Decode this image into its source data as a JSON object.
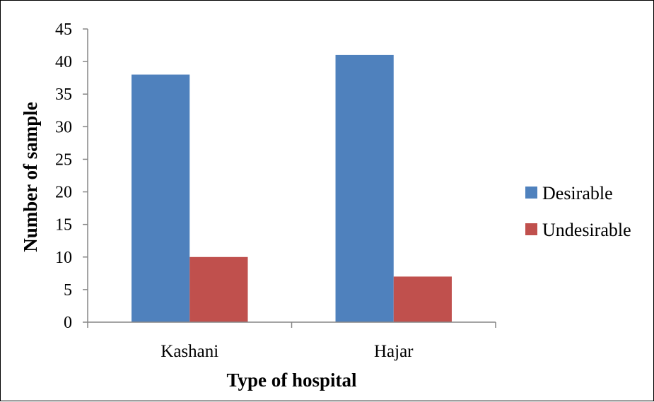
{
  "chart_data": {
    "type": "bar",
    "categories": [
      "Kashani",
      "Hajar"
    ],
    "series": [
      {
        "name": "Desirable",
        "values": [
          38,
          41
        ],
        "color": "#4F81BD"
      },
      {
        "name": "Undesirable",
        "values": [
          10,
          7
        ],
        "color": "#C0504D"
      }
    ],
    "xlabel": "Type of hospital",
    "ylabel": "Number of sample",
    "ylim": [
      0,
      45
    ],
    "yticks": [
      0,
      5,
      10,
      15,
      20,
      25,
      30,
      35,
      40,
      45
    ],
    "grid": false,
    "legend_position": "right"
  }
}
